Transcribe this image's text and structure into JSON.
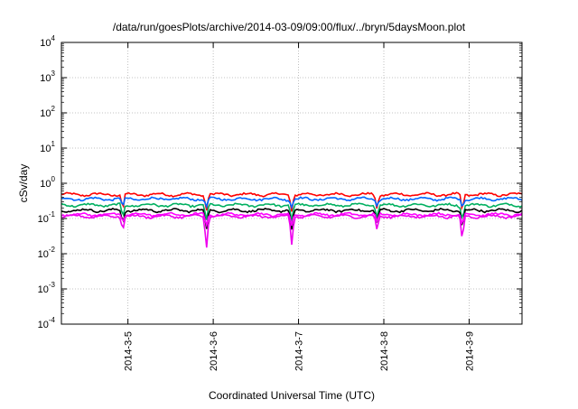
{
  "chart_data": {
    "type": "line",
    "title": "/data/run/goesPlots/archive/2014-03-09/09:00/flux/../bryn/5daysMoon.plot",
    "xlabel": "Coordinated Universal Time (UTC)",
    "ylabel": "cSv/day",
    "y_scale": "log",
    "ylim": [
      0.0001,
      10000
    ],
    "xlim": [
      0,
      5.4
    ],
    "grid": true,
    "legend": "none",
    "y_ticks": [
      {
        "base": "10",
        "exp": "-4"
      },
      {
        "base": "10",
        "exp": "-3"
      },
      {
        "base": "10",
        "exp": "-2"
      },
      {
        "base": "10",
        "exp": "-1"
      },
      {
        "base": "10",
        "exp": "0"
      },
      {
        "base": "10",
        "exp": "1"
      },
      {
        "base": "10",
        "exp": "2"
      },
      {
        "base": "10",
        "exp": "3"
      },
      {
        "base": "10",
        "exp": "4"
      }
    ],
    "x_ticks": [
      "2014-3-5",
      "2014-3-6",
      "2014-3-7",
      "2014-3-8",
      "2014-3-9"
    ],
    "x_tick_pos": [
      0.78,
      1.78,
      2.78,
      3.78,
      4.78
    ],
    "series": [
      {
        "color": "#ff0000",
        "base": 0.48,
        "dip": 0.7
      },
      {
        "color": "#0066ff",
        "base": 0.36,
        "dip": 0.45
      },
      {
        "color": "#00b060",
        "base": 0.24,
        "dip": 0.7
      },
      {
        "color": "#000000",
        "base": 0.17,
        "dip": 0.8
      },
      {
        "color": "#ff00ff",
        "base": 0.13,
        "dip": 0.6
      },
      {
        "color": "#ee00ee",
        "base": 0.115,
        "dip": 1.0
      }
    ],
    "dips": [
      {
        "x": 0.72,
        "min": 0.045
      },
      {
        "x": 1.7,
        "min": 0.012
      },
      {
        "x": 2.7,
        "min": 0.018
      },
      {
        "x": 3.7,
        "min": 0.045
      },
      {
        "x": 4.7,
        "min": 0.022
      }
    ]
  }
}
